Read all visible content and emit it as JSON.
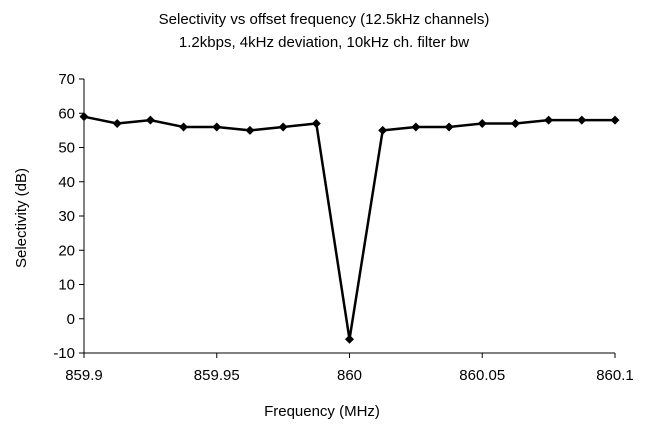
{
  "chart_data": {
    "type": "line",
    "title": "Selectivity vs offset frequency (12.5kHz channels)",
    "subtitle": "1.2kbps, 4kHz deviation, 10kHz ch. filter bw",
    "xlabel": "Frequency (MHz)",
    "ylabel": "Selectivity (dB)",
    "xlim": [
      859.9,
      860.1
    ],
    "ylim": [
      -10,
      70
    ],
    "x_ticks": [
      "859.9",
      "859.95",
      "860",
      "860.05",
      "860.1"
    ],
    "x_tick_values": [
      859.9,
      859.95,
      860,
      860.05,
      860.1
    ],
    "y_ticks": [
      "70",
      "60",
      "50",
      "40",
      "30",
      "20",
      "10",
      "0",
      "-10"
    ],
    "y_tick_values": [
      70,
      60,
      50,
      40,
      30,
      20,
      10,
      0,
      -10
    ],
    "grid": false,
    "legend": "none",
    "line_color": "#000000",
    "series": [
      {
        "x": [
          859.9,
          859.9125,
          859.925,
          859.9375,
          859.95,
          859.9625,
          859.975,
          859.9875,
          860,
          860.0125,
          860.025,
          860.0375,
          860.05,
          860.0625,
          860.075,
          860.0875,
          860.1
        ],
        "values": [
          59,
          57,
          58,
          56,
          56,
          55,
          56,
          57,
          -6,
          55,
          56,
          56,
          57,
          57,
          58,
          58,
          58
        ]
      }
    ]
  }
}
